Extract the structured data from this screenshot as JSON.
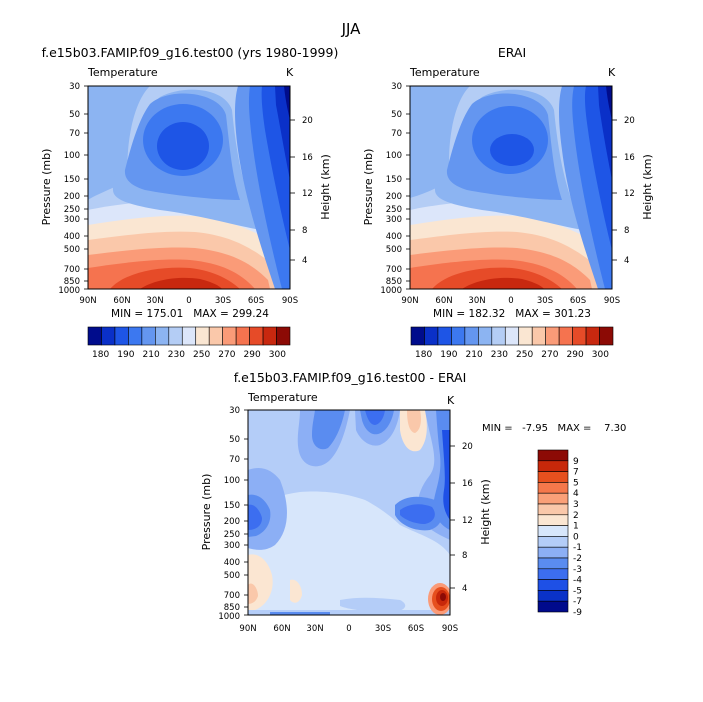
{
  "page_title": "JJA",
  "colors": {
    "temperature_levels": [
      "#000c8c",
      "#0a30c8",
      "#1e55e6",
      "#3c78f0",
      "#6496f0",
      "#8cb4f2",
      "#b4cdf5",
      "#dce6fa",
      "#fae6d2",
      "#fac8aa",
      "#fa9b78",
      "#f5734f",
      "#e64b28",
      "#c8280f",
      "#8c0a05"
    ],
    "difference_levels": [
      "#000a8c",
      "#0a32c8",
      "#1e50e6",
      "#3c6ef0",
      "#5a8cf0",
      "#8caff5",
      "#b4cdf8",
      "#d7e6fb",
      "#fbe6d2",
      "#fac8aa",
      "#faa078",
      "#f5784b",
      "#e6501e",
      "#c8280a",
      "#8c0a05"
    ]
  },
  "chart_data": [
    {
      "type": "heatmap",
      "title": "f.e15b03.FAMIP.f09_g16.test00 (yrs 1980-1999)",
      "variable": "Temperature",
      "units": "K",
      "ylabel": "Pressure (mb)",
      "y2label": "Height (km)",
      "x_ticks": [
        "90N",
        "60N",
        "30N",
        "0",
        "30S",
        "60S",
        "90S"
      ],
      "y_ticks": [
        "30",
        "50",
        "70",
        "100",
        "150",
        "200",
        "250",
        "300",
        "400",
        "500",
        "700",
        "850",
        "1000"
      ],
      "y2_ticks": [
        "20",
        "16",
        "12",
        "8",
        "4"
      ],
      "stats": "MIN = 175.01   MAX = 299.24",
      "colorbar_labels": [
        "180",
        "190",
        "210",
        "230",
        "250",
        "270",
        "290",
        "300"
      ]
    },
    {
      "type": "heatmap",
      "title": "ERAI",
      "variable": "Temperature",
      "units": "K",
      "ylabel": "Pressure (mb)",
      "y2label": "Height (km)",
      "x_ticks": [
        "90N",
        "60N",
        "30N",
        "0",
        "30S",
        "60S",
        "90S"
      ],
      "y_ticks": [
        "30",
        "50",
        "70",
        "100",
        "150",
        "200",
        "250",
        "300",
        "400",
        "500",
        "700",
        "850",
        "1000"
      ],
      "y2_ticks": [
        "20",
        "16",
        "12",
        "8",
        "4"
      ],
      "stats": "MIN = 182.32   MAX = 301.23",
      "colorbar_labels": [
        "180",
        "190",
        "210",
        "230",
        "250",
        "270",
        "290",
        "300"
      ]
    },
    {
      "type": "heatmap",
      "title": "f.e15b03.FAMIP.f09_g16.test00 - ERAI",
      "variable": "Temperature",
      "units": "K",
      "ylabel": "Pressure (mb)",
      "y2label": "Height (km)",
      "x_ticks": [
        "90N",
        "60N",
        "30N",
        "0",
        "30S",
        "60S",
        "90S"
      ],
      "y_ticks": [
        "30",
        "50",
        "70",
        "100",
        "150",
        "200",
        "250",
        "300",
        "400",
        "500",
        "700",
        "850",
        "1000"
      ],
      "y2_ticks": [
        "20",
        "16",
        "12",
        "8",
        "4"
      ],
      "stats": "MIN =   -7.95   MAX =    7.30",
      "colorbar_labels": [
        "9",
        "7",
        "5",
        "4",
        "3",
        "2",
        "1",
        "0",
        "-1",
        "-2",
        "-3",
        "-4",
        "-5",
        "-7",
        "-9"
      ]
    }
  ]
}
